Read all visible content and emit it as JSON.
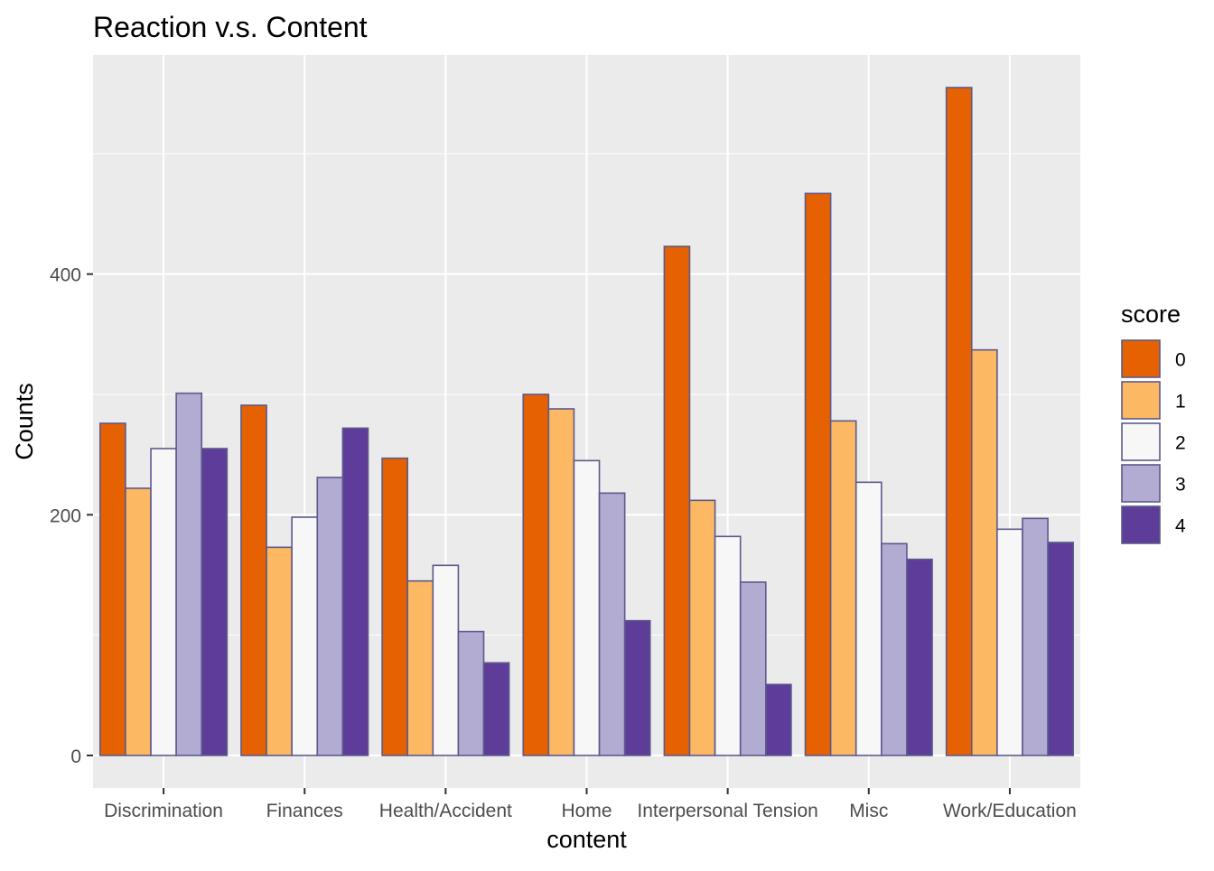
{
  "chart_data": {
    "type": "bar",
    "title": "Reaction v.s. Content",
    "xlabel": "content",
    "ylabel": "Counts",
    "categories": [
      "Discrimination",
      "Finances",
      "Health/Accident",
      "Home",
      "Interpersonal Tension",
      "Misc",
      "Work/Education"
    ],
    "series": [
      {
        "name": "0",
        "color": "#E66101",
        "values": [
          276,
          291,
          247,
          300,
          423,
          467,
          555
        ]
      },
      {
        "name": "1",
        "color": "#FDB863",
        "values": [
          222,
          173,
          145,
          288,
          212,
          278,
          337
        ]
      },
      {
        "name": "2",
        "color": "#F7F7F7",
        "values": [
          255,
          198,
          158,
          245,
          182,
          227,
          188
        ]
      },
      {
        "name": "3",
        "color": "#B2ABD2",
        "values": [
          301,
          231,
          103,
          218,
          144,
          176,
          197
        ]
      },
      {
        "name": "4",
        "color": "#5E3C99",
        "values": [
          255,
          272,
          77,
          112,
          59,
          163,
          177
        ]
      }
    ],
    "ylim": [
      -27,
      582
    ],
    "yticks": [
      0,
      200,
      400
    ],
    "grid": true,
    "legend": {
      "title": "score",
      "position": "right"
    },
    "colors": {
      "panel_background": "#EBEBEB",
      "grid": "#FFFFFF",
      "bar_outline": "#5B5A8C"
    }
  }
}
